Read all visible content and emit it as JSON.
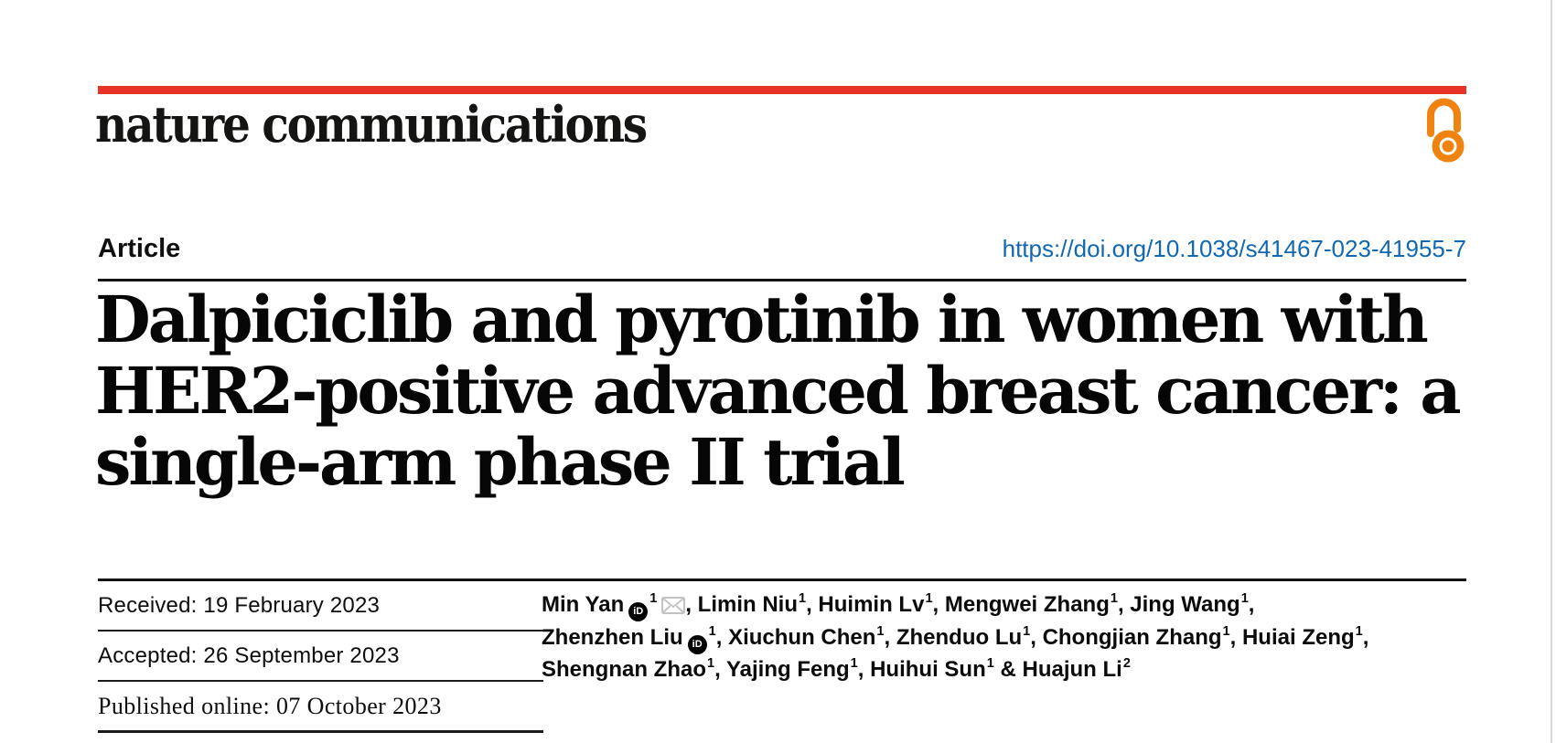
{
  "brand": {
    "logo_text": "nature communications",
    "bar_color": "#e63323",
    "open_access_icon_color": "#f0830f"
  },
  "header": {
    "article_label": "Article",
    "doi_link": "https://doi.org/10.1038/s41467-023-41955-7",
    "doi_color": "#1268b0"
  },
  "title": {
    "lines": [
      "Dalpiciclib and pyrotinib in women with",
      "HER2-positive advanced breast cancer: a",
      "single-arm phase II trial"
    ]
  },
  "dates": {
    "rows": [
      {
        "text": "Received: 19 February 2023"
      },
      {
        "text": "Accepted: 26 September 2023"
      },
      {
        "text": "Published online: 07 October 2023"
      }
    ]
  },
  "authors": {
    "orcid_icon_text": "iD",
    "list": [
      {
        "name": "Min Yan",
        "sup": "1",
        "orcid": true,
        "email": true,
        "trail": ", "
      },
      {
        "name": "Limin Niu",
        "sup": "1",
        "trail": ", "
      },
      {
        "name": "Huimin Lv",
        "sup": "1",
        "trail": ", "
      },
      {
        "name": "Mengwei Zhang",
        "sup": "1",
        "trail": ", "
      },
      {
        "name": "Jing Wang",
        "sup": "1",
        "trail": ",",
        "br": true
      },
      {
        "name": "Zhenzhen Liu",
        "sup": "1",
        "orcid": true,
        "trail": ", "
      },
      {
        "name": "Xiuchun Chen",
        "sup": "1",
        "trail": ", "
      },
      {
        "name": "Zhenduo Lu",
        "sup": "1",
        "trail": ", "
      },
      {
        "name": "Chongjian Zhang",
        "sup": "1",
        "trail": ", "
      },
      {
        "name": "Huiai Zeng",
        "sup": "1",
        "trail": ",",
        "br": true
      },
      {
        "name": "Shengnan Zhao",
        "sup": "1",
        "trail": ", "
      },
      {
        "name": "Yajing Feng",
        "sup": "1",
        "trail": ", "
      },
      {
        "name": "Huihui Sun",
        "sup": "1",
        "trail": " & "
      },
      {
        "name": "Huajun Li",
        "sup": "2",
        "trail": ""
      }
    ]
  }
}
